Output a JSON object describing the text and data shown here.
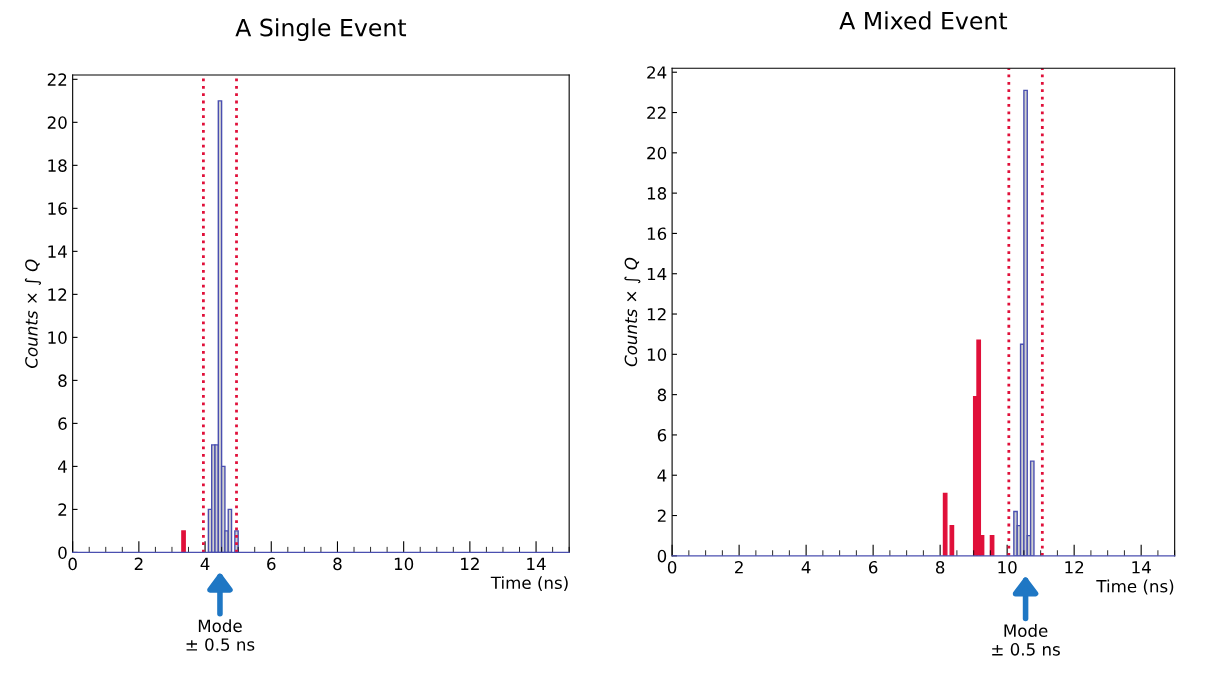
{
  "chart_data": [
    {
      "type": "histogram",
      "title": "A Single Event",
      "xlabel": "Time (ns)",
      "ylabel": "Counts × ∫ Q",
      "xlim": [
        0,
        15
      ],
      "ylim": [
        0,
        22.2
      ],
      "xticks": [
        0,
        2,
        4,
        6,
        8,
        10,
        12,
        14
      ],
      "yticks": [
        0,
        2,
        4,
        6,
        8,
        10,
        12,
        14,
        16,
        18,
        20,
        22
      ],
      "grid": false,
      "legend": false,
      "bins": [
        3.3,
        3.4,
        3.5,
        3.6,
        3.7,
        3.8,
        3.9,
        4.0,
        4.1,
        4.2,
        4.3,
        4.4,
        4.5,
        4.6,
        4.7,
        4.8,
        4.9,
        5.0
      ],
      "series": [
        {
          "color": "#e0103a",
          "values": [
            1,
            null,
            null,
            null,
            null,
            null,
            null,
            null,
            null,
            null,
            null,
            null,
            null,
            null,
            null,
            null,
            null
          ]
        },
        {
          "color": "#d0d0d0",
          "values": [
            null,
            null,
            null,
            null,
            null,
            null,
            null,
            null,
            2,
            5,
            5,
            21,
            4,
            1,
            2,
            null,
            1
          ]
        }
      ],
      "ref_lines": [
        {
          "axis": "x",
          "value": 3.95,
          "color": "#e0103a",
          "line_style": "dotted"
        },
        {
          "axis": "x",
          "value": 4.95,
          "color": "#e0103a",
          "line_style": "dotted"
        }
      ],
      "annotations": [
        "Mode\n± 0.5 ns"
      ]
    },
    {
      "type": "histogram",
      "title": "A Mixed Event",
      "xlabel": "Time (ns)",
      "ylabel": "Counts × ∫ Q",
      "xlim": [
        0,
        15
      ],
      "ylim": [
        0,
        24.2
      ],
      "xticks": [
        0,
        2,
        4,
        6,
        8,
        10,
        12,
        14
      ],
      "yticks": [
        0,
        2,
        4,
        6,
        8,
        10,
        12,
        14,
        16,
        18,
        20,
        22,
        24
      ],
      "grid": false,
      "legend": false,
      "bins": [
        8.1,
        8.2,
        8.3,
        8.4,
        8.5,
        8.6,
        8.7,
        8.8,
        8.9,
        9.0,
        9.1,
        9.2,
        9.3,
        9.4,
        9.5,
        9.6,
        9.7,
        9.8,
        9.9,
        10.0,
        10.1,
        10.2,
        10.3,
        10.4,
        10.5,
        10.6,
        10.7,
        10.8
      ],
      "series": [
        {
          "color": "#e0103a",
          "values": [
            3.1,
            null,
            1.5,
            null,
            null,
            null,
            null,
            null,
            null,
            7.9,
            10.7,
            1,
            null,
            null,
            1,
            null,
            null,
            null,
            null,
            null,
            null,
            null,
            null,
            null,
            null,
            null,
            null
          ]
        },
        {
          "color": "#d0d0d0",
          "values": [
            null,
            null,
            null,
            null,
            null,
            null,
            null,
            null,
            null,
            null,
            null,
            null,
            null,
            null,
            null,
            null,
            null,
            null,
            null,
            null,
            null,
            2.2,
            1.5,
            10.5,
            23.1,
            1,
            4.7
          ]
        }
      ],
      "ref_lines": [
        {
          "axis": "x",
          "value": 10.05,
          "color": "#e0103a",
          "line_style": "dotted"
        },
        {
          "axis": "x",
          "value": 11.05,
          "color": "#e0103a",
          "line_style": "dotted"
        }
      ],
      "annotations": [
        "Mode\n± 0.5 ns"
      ]
    }
  ]
}
